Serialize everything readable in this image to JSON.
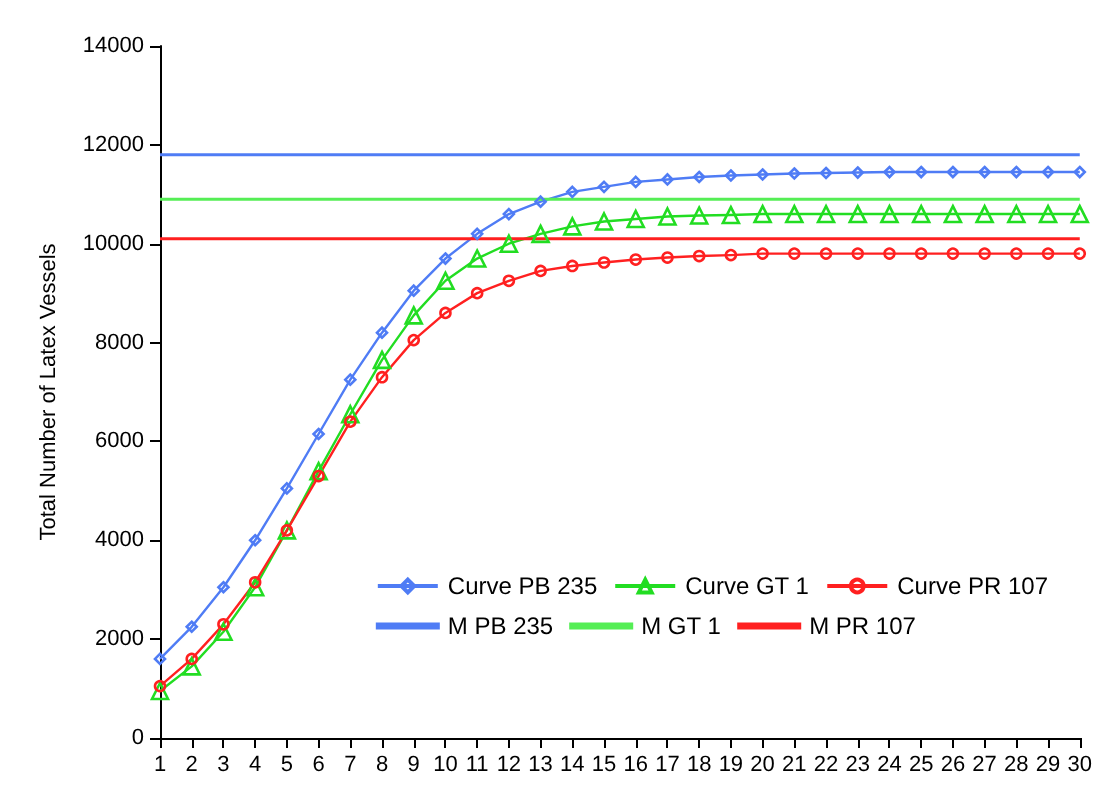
{
  "chart_data": {
    "type": "line",
    "ylabel": "Total Number of Latex Vessels",
    "x": [
      1,
      2,
      3,
      4,
      5,
      6,
      7,
      8,
      9,
      10,
      11,
      12,
      13,
      14,
      15,
      16,
      17,
      18,
      19,
      20,
      21,
      22,
      23,
      24,
      25,
      26,
      27,
      28,
      29,
      30
    ],
    "xlim": [
      1,
      30
    ],
    "xticks": [
      1,
      2,
      3,
      4,
      5,
      6,
      7,
      8,
      9,
      10,
      11,
      12,
      13,
      14,
      15,
      16,
      17,
      18,
      19,
      20,
      21,
      22,
      23,
      24,
      25,
      26,
      27,
      28,
      29,
      30
    ],
    "ylim": [
      0,
      14000
    ],
    "yticks": [
      0,
      2000,
      4000,
      6000,
      8000,
      10000,
      12000,
      14000
    ],
    "grid": false,
    "legend": "bottom right",
    "line_style": "solid",
    "series": [
      {
        "name": "Curve PB 235",
        "color": "#4f7cf5",
        "marker": "diamond",
        "values": [
          1600,
          2250,
          3050,
          4000,
          5050,
          6150,
          7250,
          8200,
          9050,
          9700,
          10200,
          10600,
          10850,
          11050,
          11150,
          11250,
          11300,
          11350,
          11380,
          11400,
          11420,
          11430,
          11440,
          11450,
          11450,
          11450,
          11450,
          11450,
          11450,
          11450
        ]
      },
      {
        "name": "Curve GT 1",
        "color": "#22dd22",
        "marker": "triangle",
        "values": [
          950,
          1450,
          2150,
          3050,
          4200,
          5400,
          6550,
          7650,
          8550,
          9250,
          9700,
          10000,
          10200,
          10350,
          10450,
          10500,
          10550,
          10570,
          10580,
          10600,
          10600,
          10600,
          10600,
          10600,
          10600,
          10600,
          10600,
          10600,
          10600,
          10600
        ]
      },
      {
        "name": "Curve PR 107",
        "color": "#ff2020",
        "marker": "circle",
        "values": [
          1050,
          1600,
          2300,
          3150,
          4200,
          5300,
          6400,
          7300,
          8050,
          8600,
          9000,
          9250,
          9450,
          9550,
          9620,
          9680,
          9720,
          9750,
          9770,
          9800,
          9800,
          9800,
          9800,
          9800,
          9800,
          9800,
          9800,
          9800,
          9800,
          9800
        ]
      },
      {
        "name": "M PB 235",
        "color": "#4f7cf5",
        "marker": "none",
        "values": [
          11800,
          11800,
          11800,
          11800,
          11800,
          11800,
          11800,
          11800,
          11800,
          11800,
          11800,
          11800,
          11800,
          11800,
          11800,
          11800,
          11800,
          11800,
          11800,
          11800,
          11800,
          11800,
          11800,
          11800,
          11800,
          11800,
          11800,
          11800,
          11800,
          11800
        ]
      },
      {
        "name": "M GT 1",
        "color": "#55ee55",
        "marker": "none",
        "values": [
          10900,
          10900,
          10900,
          10900,
          10900,
          10900,
          10900,
          10900,
          10900,
          10900,
          10900,
          10900,
          10900,
          10900,
          10900,
          10900,
          10900,
          10900,
          10900,
          10900,
          10900,
          10900,
          10900,
          10900,
          10900,
          10900,
          10900,
          10900,
          10900,
          10900
        ]
      },
      {
        "name": "M PR 107",
        "color": "#ff2020",
        "marker": "none",
        "values": [
          10100,
          10100,
          10100,
          10100,
          10100,
          10100,
          10100,
          10100,
          10100,
          10100,
          10100,
          10100,
          10100,
          10100,
          10100,
          10100,
          10100,
          10100,
          10100,
          10100,
          10100,
          10100,
          10100,
          10100,
          10100,
          10100,
          10100,
          10100,
          10100,
          10100
        ]
      }
    ]
  }
}
